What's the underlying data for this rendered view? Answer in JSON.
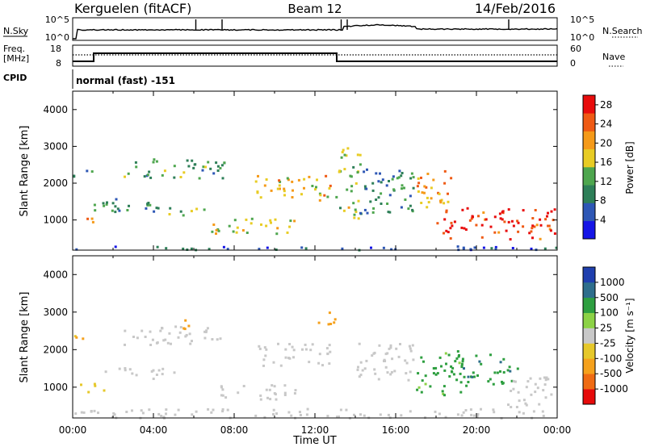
{
  "header": {
    "station": "Kerguelen (fitACF)",
    "beam": "Beam 12",
    "date": "14/Feb/2016"
  },
  "noise_panel": {
    "left_label": "N.Sky",
    "right_label": "N.Search",
    "left_ticks": [
      "10^5",
      "10^0"
    ],
    "right_ticks": [
      "10^5",
      "10^0"
    ]
  },
  "freq_panel": {
    "left_label_line1": "Freq.",
    "left_label_line2": "[MHz]",
    "right_label": "Nave",
    "left_ticks": [
      "18",
      "8"
    ],
    "right_ticks": [
      "60",
      "0"
    ]
  },
  "cpid": {
    "label": "CPID",
    "program": "normal (fast) -151"
  },
  "colors": {
    "power": [
      "#1515e6",
      "#2e57b5",
      "#2e7f58",
      "#4ea64e",
      "#e8cc24",
      "#f59a19",
      "#ef5a14",
      "#e80c0c"
    ],
    "velocity": [
      "#e60a0a",
      "#ef6b13",
      "#f5a11c",
      "#e6c82a",
      "#c8c8c8",
      "#8cd246",
      "#2e9f40",
      "#2e6e8c",
      "#1f3fae"
    ],
    "ground_scatter": "#c0c0c0"
  },
  "chart_data": [
    {
      "type": "heatmap",
      "id": "power",
      "ylabel": "Slant Range [km]",
      "xlim": [
        "00:00",
        "24:00"
      ],
      "ylim": [
        180,
        4500
      ],
      "yticks": [
        "1000",
        "2000",
        "3000",
        "4000"
      ],
      "colorbar_label": "Power [dB]",
      "colorbar_ticks": [
        "4",
        "8",
        "12",
        "16",
        "20",
        "24",
        "28"
      ],
      "colorbar_range": [
        0,
        30
      ],
      "features": [
        {
          "t": [
            0.0,
            24.0
          ],
          "r": [
            200,
            310
          ],
          "db": 6
        },
        {
          "t": [
            0.0,
            1.1
          ],
          "r": [
            2150,
            2400
          ],
          "db": 8
        },
        {
          "t": [
            0.0,
            1.4
          ],
          "r": [
            950,
            1120
          ],
          "db": 20
        },
        {
          "t": [
            0.5,
            5.0
          ],
          "r": [
            1250,
            1600
          ],
          "db": 10
        },
        {
          "t": [
            2.5,
            7.5
          ],
          "r": [
            2150,
            2700
          ],
          "db": 11
        },
        {
          "t": [
            4.5,
            6.5
          ],
          "r": [
            1150,
            1400
          ],
          "db": 12
        },
        {
          "t": [
            6.8,
            11.0
          ],
          "r": [
            650,
            1100
          ],
          "db": 17
        },
        {
          "t": [
            9.0,
            12.8
          ],
          "r": [
            1550,
            2250
          ],
          "db": 19
        },
        {
          "t": [
            13.0,
            14.2
          ],
          "r": [
            1050,
            3000
          ],
          "db": 14
        },
        {
          "t": [
            14.2,
            17.0
          ],
          "r": [
            1200,
            2500
          ],
          "db": 10
        },
        {
          "t": [
            17.0,
            18.8
          ],
          "r": [
            1300,
            2400
          ],
          "db": 20
        },
        {
          "t": [
            18.0,
            24.0
          ],
          "r": [
            500,
            1350
          ],
          "db": 27
        }
      ]
    },
    {
      "type": "heatmap",
      "id": "velocity",
      "ylabel": "Slant Range [km]",
      "xlabel": "Time UT",
      "xlim": [
        "00:00",
        "24:00"
      ],
      "ylim": [
        180,
        4500
      ],
      "xticks": [
        "00:00",
        "04:00",
        "08:00",
        "12:00",
        "16:00",
        "20:00",
        "00:00"
      ],
      "yticks": [
        "1000",
        "2000",
        "3000",
        "4000"
      ],
      "colorbar_label": "Velocity [m s⁻¹]",
      "colorbar_ticks": [
        "1000",
        "500",
        "100",
        "25",
        "-25",
        "-100",
        "-500",
        "-1000"
      ],
      "features": [
        {
          "t": [
            0.0,
            24.0
          ],
          "r": [
            200,
            450
          ],
          "v": 0
        },
        {
          "t": [
            0.0,
            1.2
          ],
          "r": [
            2250,
            2420
          ],
          "v": -150
        },
        {
          "t": [
            0.0,
            1.5
          ],
          "r": [
            900,
            1150
          ],
          "v": -60
        },
        {
          "t": [
            1.5,
            5.0
          ],
          "r": [
            1250,
            1550
          ],
          "v": 0
        },
        {
          "t": [
            2.5,
            7.5
          ],
          "r": [
            2150,
            2650
          ],
          "v": 0
        },
        {
          "t": [
            5.4,
            6.2
          ],
          "r": [
            2550,
            2900
          ],
          "v": -300
        },
        {
          "t": [
            6.8,
            11.0
          ],
          "r": [
            700,
            1100
          ],
          "v": 0
        },
        {
          "t": [
            9.0,
            12.8
          ],
          "r": [
            1600,
            2200
          ],
          "v": 0
        },
        {
          "t": [
            12.0,
            13.0
          ],
          "r": [
            2700,
            3100
          ],
          "v": -200
        },
        {
          "t": [
            14.0,
            17.0
          ],
          "r": [
            1200,
            2200
          ],
          "v": 0
        },
        {
          "t": [
            17.0,
            19.5
          ],
          "r": [
            800,
            2000
          ],
          "v": 150
        },
        {
          "t": [
            19.0,
            22.0
          ],
          "r": [
            1100,
            1900
          ],
          "v": 400
        },
        {
          "t": [
            21.5,
            24.0
          ],
          "r": [
            500,
            1300
          ],
          "v": 0
        }
      ]
    }
  ]
}
